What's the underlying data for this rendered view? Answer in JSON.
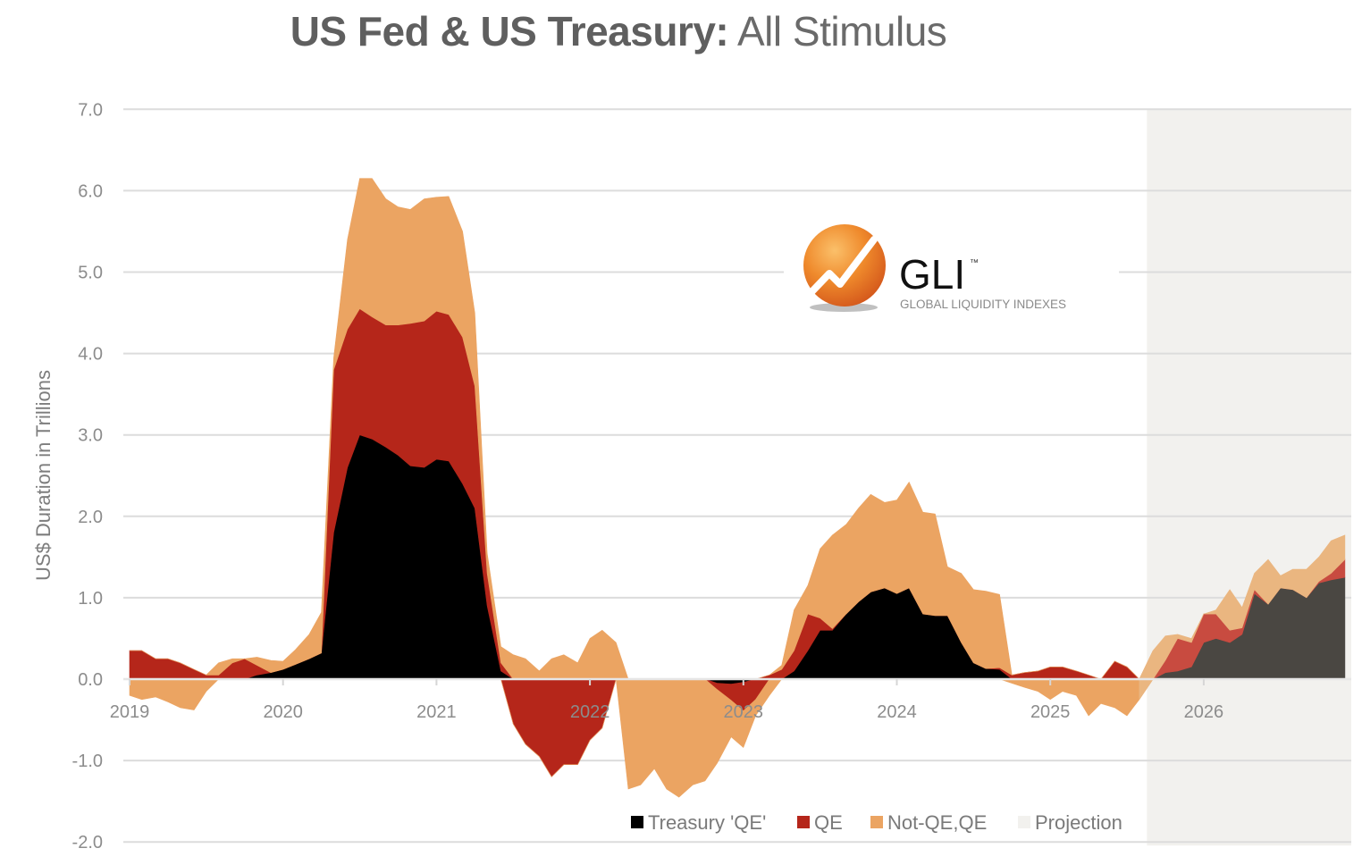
{
  "title": {
    "bold": "US Fed & US Treasury:",
    "light": "All Stimulus"
  },
  "logo": {
    "name": "GLI",
    "trademark": "™",
    "subtitle": "GLOBAL LIQUIDITY INDEXES",
    "icon": "rising-chart-orb-icon"
  },
  "chart_data": {
    "type": "area",
    "stacked": true,
    "title": "US Fed & US Treasury: All Stimulus",
    "xlabel": "",
    "ylabel": "US$ Duration in Trillions",
    "xlim": [
      2019.0,
      2026.95
    ],
    "ylim": [
      -2.0,
      7.0
    ],
    "yticks": [
      7.0,
      6.0,
      5.0,
      4.0,
      3.0,
      2.0,
      1.0,
      0.0,
      -1.0,
      -2.0
    ],
    "ytick_labels": [
      "7.0",
      "6.0",
      "5.0",
      "4.0",
      "3.0",
      "2.0",
      "1.0",
      "0.0",
      "-1.0",
      "-2.0"
    ],
    "xticks": [
      2019,
      2020,
      2021,
      2022,
      2023,
      2024,
      2025,
      2026
    ],
    "xtick_labels": [
      "2019",
      "2020",
      "2021",
      "2022",
      "2023",
      "2024",
      "2025",
      "2026"
    ],
    "grid": true,
    "legend_position": "bottom-right",
    "projection_start": 2025.63,
    "projection_end": 2026.95,
    "x": [
      2019.0,
      2019.08,
      2019.17,
      2019.25,
      2019.33,
      2019.42,
      2019.5,
      2019.58,
      2019.67,
      2019.75,
      2019.83,
      2019.92,
      2020.0,
      2020.08,
      2020.17,
      2020.25,
      2020.33,
      2020.42,
      2020.5,
      2020.58,
      2020.67,
      2020.75,
      2020.83,
      2020.92,
      2021.0,
      2021.08,
      2021.17,
      2021.25,
      2021.33,
      2021.42,
      2021.5,
      2021.58,
      2021.67,
      2021.75,
      2021.83,
      2021.92,
      2022.0,
      2022.08,
      2022.17,
      2022.25,
      2022.33,
      2022.42,
      2022.5,
      2022.58,
      2022.67,
      2022.75,
      2022.83,
      2022.92,
      2023.0,
      2023.08,
      2023.17,
      2023.25,
      2023.33,
      2023.42,
      2023.5,
      2023.58,
      2023.67,
      2023.75,
      2023.83,
      2023.92,
      2024.0,
      2024.08,
      2024.17,
      2024.25,
      2024.33,
      2024.42,
      2024.5,
      2024.58,
      2024.67,
      2024.75,
      2024.83,
      2024.92,
      2025.0,
      2025.08,
      2025.17,
      2025.25,
      2025.33,
      2025.42,
      2025.5,
      2025.58,
      2025.67,
      2025.75,
      2025.83,
      2025.92,
      2026.0,
      2026.08,
      2026.17,
      2026.25,
      2026.33,
      2026.42,
      2026.5,
      2026.58,
      2026.67,
      2026.75,
      2026.83,
      2026.92
    ],
    "series": [
      {
        "name": "Treasury 'QE'",
        "color": "#000000",
        "projection_color": "#4a4742",
        "values": [
          0,
          0,
          0,
          0,
          0,
          0,
          0,
          0,
          0,
          0,
          0.05,
          0.08,
          0.12,
          0.18,
          0.25,
          0.32,
          1.8,
          2.6,
          3.0,
          2.95,
          2.85,
          2.75,
          2.62,
          2.6,
          2.7,
          2.68,
          2.4,
          2.1,
          0.9,
          0.1,
          0,
          0,
          0,
          0,
          0,
          0,
          0,
          0,
          0,
          0,
          0,
          0,
          0,
          0,
          0,
          0,
          -0.05,
          -0.06,
          -0.04,
          0,
          0,
          0,
          0.1,
          0.35,
          0.6,
          0.6,
          0.8,
          0.95,
          1.07,
          1.12,
          1.05,
          1.12,
          0.8,
          0.78,
          0.78,
          0.45,
          0.2,
          0.13,
          0.12,
          0,
          0,
          0,
          0,
          0,
          0,
          0,
          0,
          0,
          0,
          0,
          0,
          0.08,
          0.1,
          0.15,
          0.45,
          0.5,
          0.45,
          0.55,
          1.05,
          0.92,
          1.12,
          1.1,
          1.0,
          1.18,
          1.22,
          1.25
        ]
      },
      {
        "name": "QE",
        "color": "#b5261a",
        "projection_color": "#c84b40",
        "values": [
          0.35,
          0.35,
          0.25,
          0.25,
          0.2,
          0.12,
          0.05,
          0.05,
          0.2,
          0.25,
          0.12,
          0,
          0,
          0,
          0,
          0,
          2.0,
          1.7,
          1.55,
          1.5,
          1.5,
          1.6,
          1.75,
          1.8,
          1.82,
          1.8,
          1.8,
          1.5,
          0.4,
          0.1,
          -0.55,
          -0.8,
          -0.95,
          -1.2,
          -1.05,
          -1.05,
          -0.75,
          -0.6,
          0,
          0,
          0,
          0,
          0,
          0,
          0,
          0,
          -0.08,
          -0.2,
          -0.35,
          -0.25,
          0.05,
          0.12,
          0.25,
          0.45,
          0.15,
          0.02,
          0,
          0,
          0,
          0,
          0,
          0,
          0,
          0,
          0,
          0,
          0,
          0,
          0.02,
          0.05,
          0.08,
          0.1,
          0.15,
          0.15,
          0.1,
          0.05,
          0,
          0.22,
          0.15,
          0,
          0,
          0.15,
          0.4,
          0.3,
          0.35,
          0.3,
          0.15,
          0.08,
          0.05,
          0,
          0,
          0,
          0,
          0.02,
          0.08,
          0.22
        ]
      },
      {
        "name": "Not-QE,QE",
        "color": "#eba462",
        "projection_color": "#eab680",
        "values": [
          -0.2,
          -0.25,
          -0.22,
          -0.28,
          -0.35,
          -0.38,
          -0.15,
          0.15,
          0.05,
          0,
          0.1,
          0.15,
          0.1,
          0.18,
          0.3,
          0.5,
          0.15,
          1.1,
          1.6,
          1.7,
          1.55,
          1.45,
          1.4,
          1.5,
          1.4,
          1.45,
          1.3,
          0.9,
          0.25,
          0.2,
          0.3,
          0.25,
          0.1,
          0.25,
          0.3,
          0.2,
          0.5,
          0.6,
          0.45,
          -1.35,
          -1.3,
          -1.1,
          -1.35,
          -1.45,
          -1.3,
          -1.25,
          -0.9,
          -0.45,
          -0.45,
          -0.2,
          -0.2,
          0.05,
          0.5,
          0.35,
          0.85,
          1.15,
          1.1,
          1.15,
          1.2,
          1.05,
          1.15,
          1.3,
          1.25,
          1.25,
          0.6,
          0.85,
          0.9,
          0.95,
          0.9,
          -0.05,
          -0.1,
          -0.15,
          -0.25,
          -0.15,
          -0.2,
          -0.45,
          -0.3,
          -0.35,
          -0.45,
          -0.25,
          0.35,
          0.3,
          0.05,
          0.05,
          0.0,
          0.05,
          0.5,
          0.25,
          0.2,
          0.55,
          0.15,
          0.25,
          0.35,
          0.3,
          0.4,
          0.3
        ]
      },
      {
        "name": "Projection",
        "color": "#f2f1ee",
        "values": []
      }
    ]
  },
  "legend": {
    "items": [
      {
        "label": "Treasury 'QE'",
        "color": "#000000"
      },
      {
        "label": "QE",
        "color": "#b5261a"
      },
      {
        "label": "Not-QE,QE",
        "color": "#eba462"
      },
      {
        "label": "Projection",
        "color": "#f2f1ee"
      }
    ]
  }
}
